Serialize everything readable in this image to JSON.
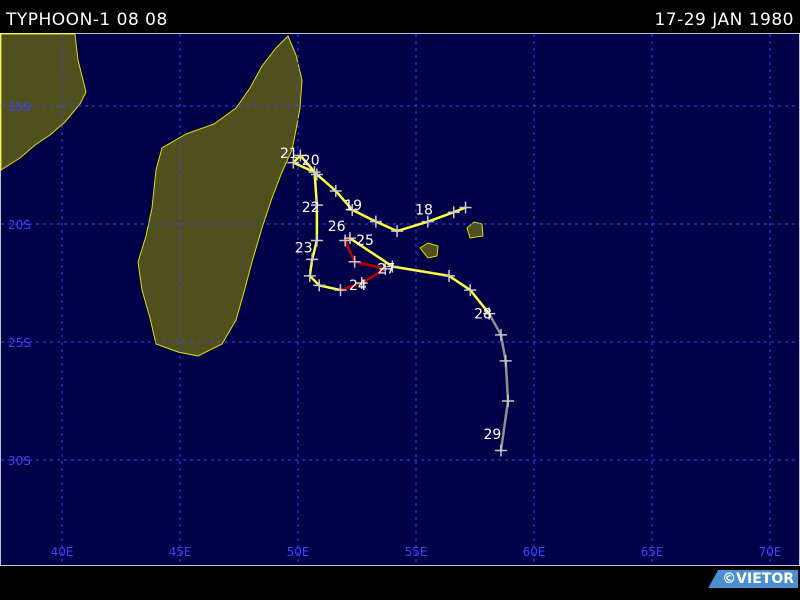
{
  "header": {
    "title": "TYPHOON-1 08 08",
    "dates": "17-29 JAN 1980"
  },
  "credit": "©VIETOR",
  "map": {
    "colors": {
      "ocean": "#000048",
      "land": "#50501e",
      "coast": "#e0e000",
      "grid": "#4040ff",
      "track_yellow": "#ffff40",
      "track_red": "#c00000",
      "track_grey": "#909090",
      "marks": "#c8c8c8"
    },
    "lon_labels": [
      "40E",
      "45E",
      "50E",
      "55E",
      "60E",
      "65E",
      "70E"
    ],
    "lat_labels": [
      "15S",
      "20S",
      "25S",
      "30S"
    ],
    "track": [
      {
        "lon": 57.1,
        "lat": -19.3,
        "c": "grey"
      },
      {
        "lon": 56.6,
        "lat": -19.5,
        "c": "yellow"
      },
      {
        "lon": 55.5,
        "lat": -19.9,
        "c": "yellow"
      },
      {
        "lon": 54.2,
        "lat": -20.3,
        "c": "yellow"
      },
      {
        "lon": 53.3,
        "lat": -19.9,
        "c": "yellow"
      },
      {
        "lon": 52.3,
        "lat": -19.4,
        "c": "yellow"
      },
      {
        "lon": 51.6,
        "lat": -18.6,
        "c": "yellow"
      },
      {
        "lon": 50.8,
        "lat": -17.9,
        "c": "yellow"
      },
      {
        "lon": 50.1,
        "lat": -17.1,
        "c": "yellow"
      },
      {
        "lon": 49.8,
        "lat": -17.4,
        "c": "yellow"
      },
      {
        "lon": 50.7,
        "lat": -17.8,
        "c": "yellow"
      },
      {
        "lon": 50.8,
        "lat": -19.2,
        "c": "yellow"
      },
      {
        "lon": 50.8,
        "lat": -20.7,
        "c": "yellow"
      },
      {
        "lon": 50.6,
        "lat": -21.5,
        "c": "yellow"
      },
      {
        "lon": 50.5,
        "lat": -22.2,
        "c": "yellow"
      },
      {
        "lon": 50.9,
        "lat": -22.6,
        "c": "yellow"
      },
      {
        "lon": 51.8,
        "lat": -22.8,
        "c": "yellow"
      },
      {
        "lon": 52.7,
        "lat": -22.5,
        "c": "red"
      },
      {
        "lon": 53.7,
        "lat": -21.9,
        "c": "red"
      },
      {
        "lon": 52.4,
        "lat": -21.6,
        "c": "red"
      },
      {
        "lon": 52.0,
        "lat": -20.7,
        "c": "red"
      },
      {
        "lon": 52.2,
        "lat": -20.6,
        "c": "red"
      },
      {
        "lon": 54.0,
        "lat": -21.8,
        "c": "yellow"
      },
      {
        "lon": 56.4,
        "lat": -22.2,
        "c": "yellow"
      },
      {
        "lon": 57.3,
        "lat": -22.8,
        "c": "yellow"
      },
      {
        "lon": 58.1,
        "lat": -23.8,
        "c": "yellow"
      },
      {
        "lon": 58.6,
        "lat": -24.7,
        "c": "grey"
      },
      {
        "lon": 58.8,
        "lat": -25.8,
        "c": "grey"
      },
      {
        "lon": 58.9,
        "lat": -27.5,
        "c": "grey"
      },
      {
        "lon": 58.6,
        "lat": -29.6,
        "c": "grey"
      }
    ],
    "day_labels": [
      {
        "text": "18",
        "lon": 55.3,
        "lat": -19.6
      },
      {
        "text": "19",
        "lon": 52.3,
        "lat": -19.4
      },
      {
        "text": "20",
        "lon": 50.5,
        "lat": -17.5
      },
      {
        "text": "21",
        "lon": 49.7,
        "lat": -17.2
      },
      {
        "text": "22",
        "lon": 50.5,
        "lat": -19.5
      },
      {
        "text": "23",
        "lon": 50.2,
        "lat": -21.2
      },
      {
        "text": "24",
        "lon": 52.5,
        "lat": -22.8
      },
      {
        "text": "25",
        "lon": 52.8,
        "lat": -20.9
      },
      {
        "text": "26",
        "lon": 51.6,
        "lat": -20.3
      },
      {
        "text": "27",
        "lon": 53.7,
        "lat": -22.1
      },
      {
        "text": "28",
        "lon": 57.8,
        "lat": -24.0
      },
      {
        "text": "29",
        "lon": 58.2,
        "lat": -29.1
      }
    ]
  }
}
